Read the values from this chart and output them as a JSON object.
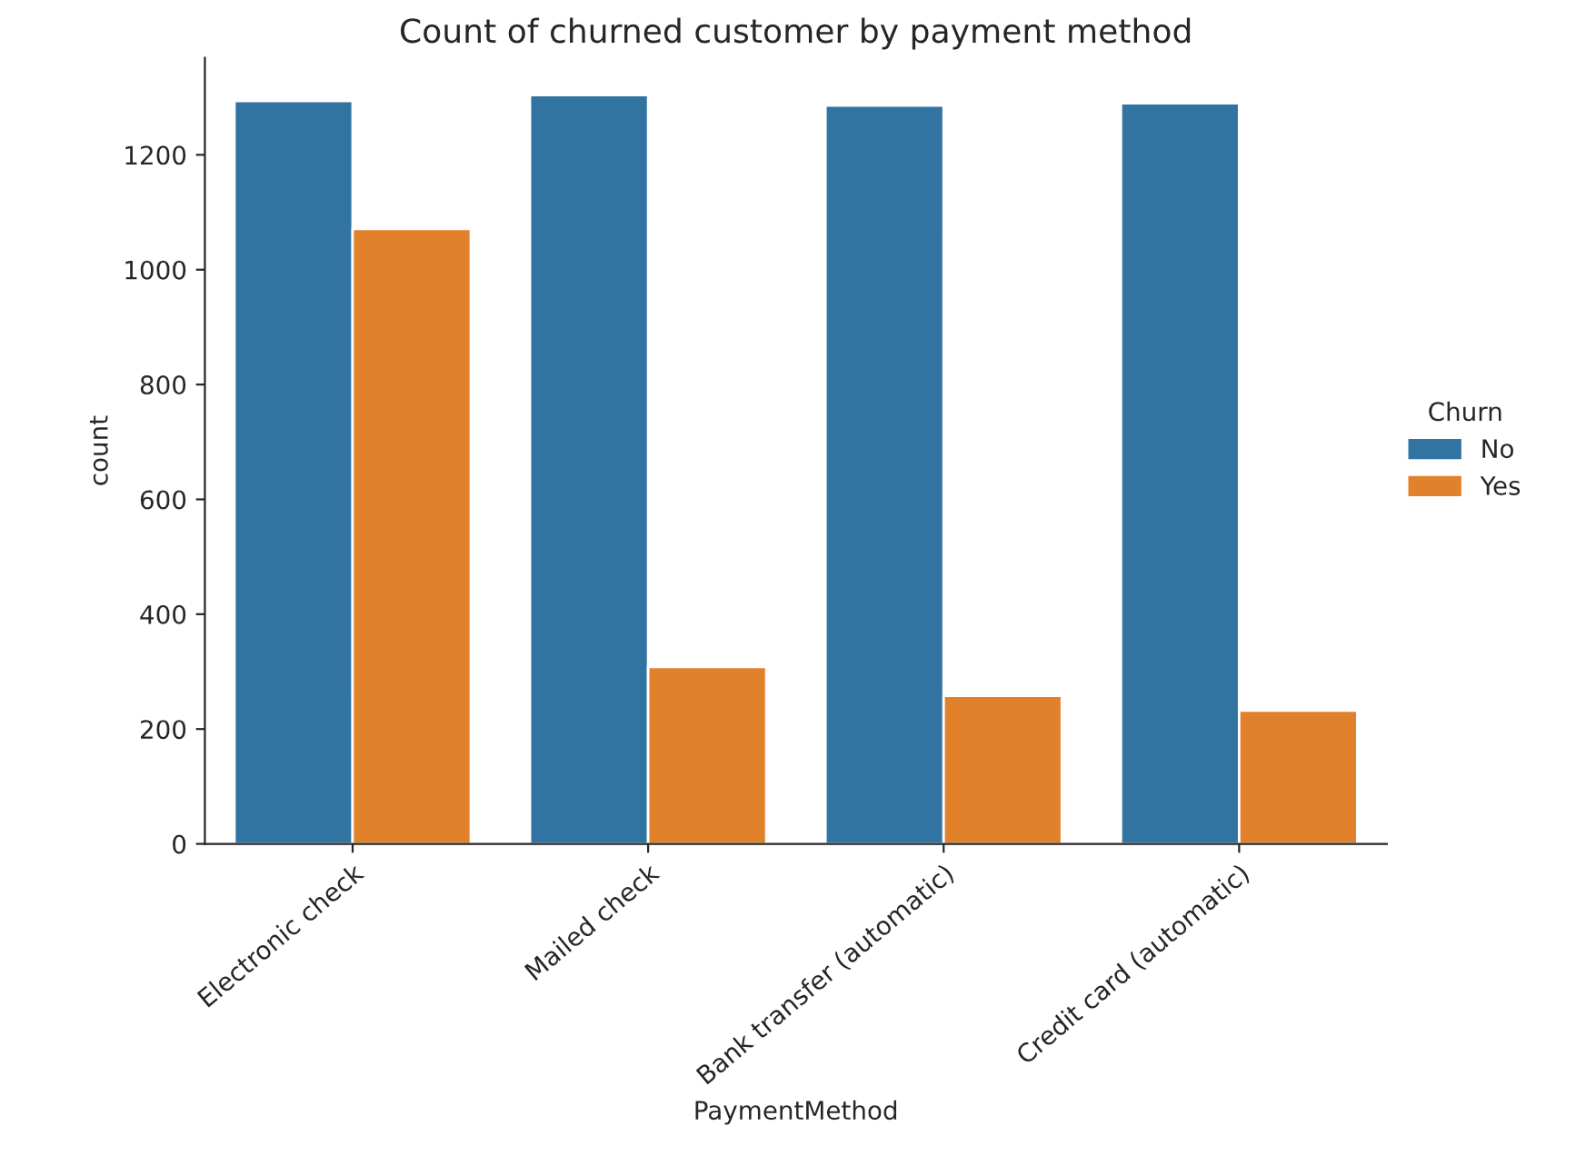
{
  "chart_data": {
    "type": "bar",
    "title": "Count of churned customer by payment method",
    "xlabel": "PaymentMethod",
    "ylabel": "count",
    "legend_title": "Churn",
    "categories": [
      "Electronic check",
      "Mailed check",
      "Bank transfer (automatic)",
      "Credit card (automatic)"
    ],
    "series": [
      {
        "name": "No",
        "color": "#3274a1",
        "values": [
          1294,
          1304,
          1286,
          1290
        ]
      },
      {
        "name": "Yes",
        "color": "#e1812c",
        "values": [
          1071,
          308,
          258,
          232
        ]
      }
    ],
    "ylim": [
      0,
      1369
    ],
    "yticks": [
      0,
      200,
      400,
      600,
      800,
      1000,
      1200
    ],
    "grid": false,
    "legend": "right"
  }
}
